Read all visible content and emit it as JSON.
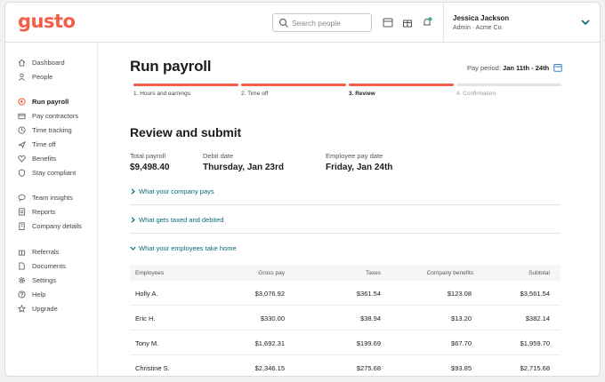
{
  "header": {
    "logo": "gusto",
    "search_placeholder": "Search people",
    "user_name": "Jessica Jackson",
    "user_org": "Admin · Acme Co."
  },
  "icons": [
    "search-icon",
    "calendar-icon",
    "gift-icon",
    "notification-icon",
    "chevron-down-icon"
  ],
  "sidebar": {
    "items": [
      {
        "label": "Dashboard",
        "icon": "home-icon"
      },
      {
        "label": "People",
        "icon": "people-icon"
      },
      {
        "label": "Run payroll",
        "icon": "payroll-icon"
      },
      {
        "label": "Pay contractors",
        "icon": "contractors-icon"
      },
      {
        "label": "Time tracking",
        "icon": "clock-icon"
      },
      {
        "label": "Time off",
        "icon": "plane-icon"
      },
      {
        "label": "Benefits",
        "icon": "heart-icon"
      },
      {
        "label": "Stay compliant",
        "icon": "shield-icon"
      },
      {
        "label": "Team insights",
        "icon": "chat-icon"
      },
      {
        "label": "Reports",
        "icon": "reports-icon"
      },
      {
        "label": "Company details",
        "icon": "building-icon"
      },
      {
        "label": "Referrals",
        "icon": "gift-icon"
      },
      {
        "label": "Documents",
        "icon": "document-icon"
      },
      {
        "label": "Settings",
        "icon": "gear-icon"
      },
      {
        "label": "Help",
        "icon": "help-icon"
      },
      {
        "label": "Upgrade",
        "icon": "star-icon"
      }
    ],
    "active_index": 2
  },
  "main": {
    "title": "Run payroll",
    "pay_period_label": "Pay period:",
    "pay_period_value": "Jan 11th - 24th",
    "steps": [
      {
        "label": "1. Hours and earnings",
        "state": "done"
      },
      {
        "label": "2. Time off",
        "state": "done"
      },
      {
        "label": "3. Review",
        "state": "current"
      },
      {
        "label": "4. Confirmation",
        "state": "todo"
      }
    ],
    "section_title": "Review and submit",
    "summary": {
      "total_label": "Total payroll",
      "total_value": "$9,498.40",
      "debit_label": "Debit date",
      "debit_value": "Thursday, Jan 23rd",
      "pay_label": "Employee pay date",
      "pay_value": "Friday, Jan 24th"
    },
    "accordions": [
      {
        "label": "What your company pays",
        "expanded": false
      },
      {
        "label": "What gets taxed and debited",
        "expanded": false
      },
      {
        "label": "What your employees take home",
        "expanded": true
      }
    ],
    "table": {
      "columns": [
        "Employees",
        "Gross pay",
        "Taxes",
        "Company benefits",
        "Subtotal"
      ],
      "rows": [
        [
          "Holly A.",
          "$3,076.92",
          "$361.54",
          "$123.08",
          "$3,561.54"
        ],
        [
          "Eric H.",
          "$330.00",
          "$38.94",
          "$13.20",
          "$382.14"
        ],
        [
          "Tony M.",
          "$1,692.31",
          "$199.69",
          "$67.70",
          "$1,959.70"
        ],
        [
          "Christine S.",
          "$2,346.15",
          "$275.68",
          "$93.85",
          "$2,715.68"
        ]
      ]
    }
  },
  "colors": {
    "brand": "#f45d48",
    "link": "#0a6a75",
    "notify": "#2bb673"
  }
}
